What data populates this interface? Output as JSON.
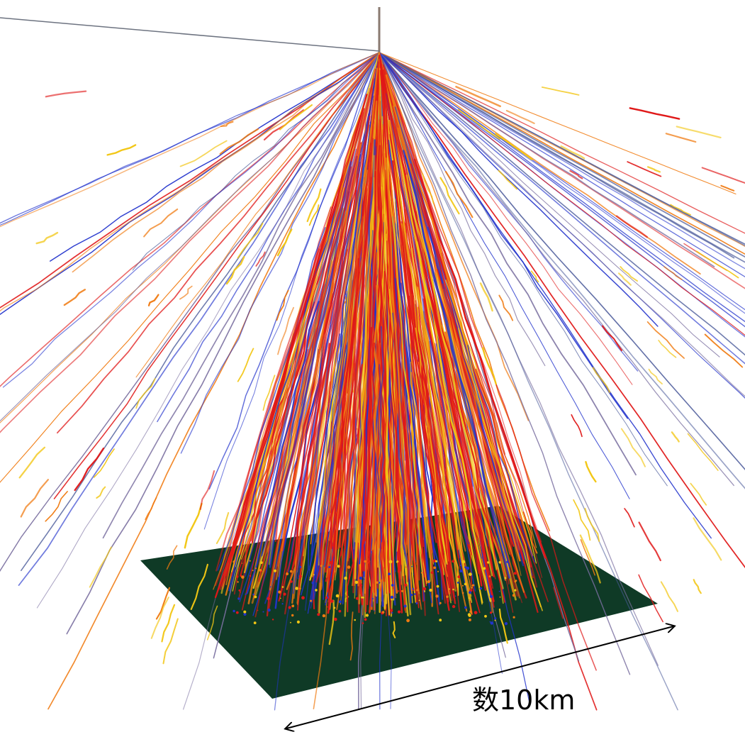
{
  "scale": {
    "label": "数10km"
  },
  "colors": {
    "ground": "#0f3a26",
    "primary_track": "#8a7a70",
    "electron_red": "#e01818",
    "electron_orange": "#f07a10",
    "photon_yellow": "#f2c614",
    "muon_blue": "#2233cc",
    "arrow": "#000000"
  }
}
